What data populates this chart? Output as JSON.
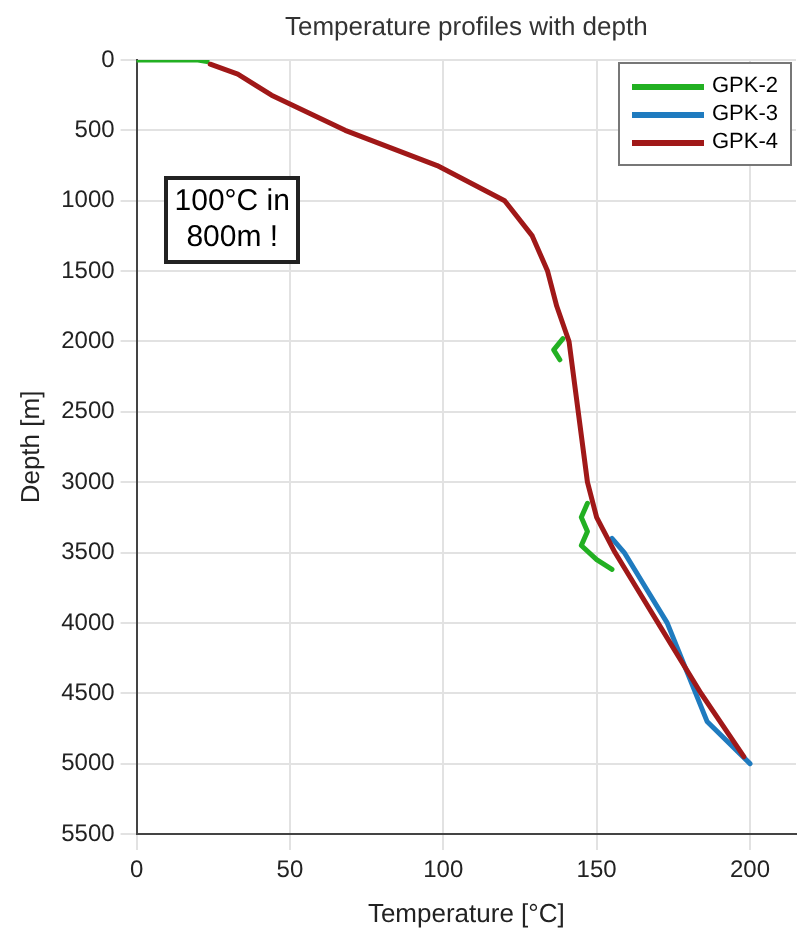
{
  "chart_data": {
    "type": "line",
    "title": "Temperature profiles with depth",
    "xlabel": "Temperature [°C]",
    "ylabel": "Depth [m]",
    "xlim": [
      0,
      215
    ],
    "xticks": [
      0,
      50,
      100,
      150,
      200
    ],
    "ylim": [
      5500,
      0
    ],
    "yticks": [
      0,
      500,
      1000,
      1500,
      2000,
      2500,
      3000,
      3500,
      4000,
      4500,
      5000,
      5500
    ],
    "grid": true,
    "legend": "top right",
    "marker": "none",
    "line_style": "solid",
    "annotations": [
      "100°C in\n800m !"
    ],
    "series": [
      {
        "name": "GPK-2",
        "color": "#22b022",
        "x": [
          0,
          20,
          23,
          null,
          139,
          136,
          138,
          null,
          147,
          145,
          147,
          145,
          150,
          155
        ],
        "values": [
          0,
          0,
          10,
          null,
          1980,
          2060,
          2130,
          null,
          3150,
          3250,
          3350,
          3450,
          3550,
          3620
        ]
      },
      {
        "name": "GPK-3",
        "color": "#1f7bbf",
        "x": [
          155,
          159,
          166,
          173,
          186,
          200
        ],
        "values": [
          3400,
          3500,
          3750,
          4000,
          4700,
          5000
        ]
      },
      {
        "name": "GPK-4",
        "color": "#a01818",
        "x": [
          24,
          33,
          44,
          68,
          98,
          120,
          129,
          134,
          137,
          141,
          144,
          147,
          150,
          156,
          163,
          170,
          184,
          198
        ],
        "values": [
          30,
          100,
          250,
          500,
          750,
          1000,
          1250,
          1500,
          1750,
          2000,
          2500,
          3000,
          3250,
          3500,
          3750,
          4000,
          4500,
          4950
        ]
      }
    ]
  }
}
